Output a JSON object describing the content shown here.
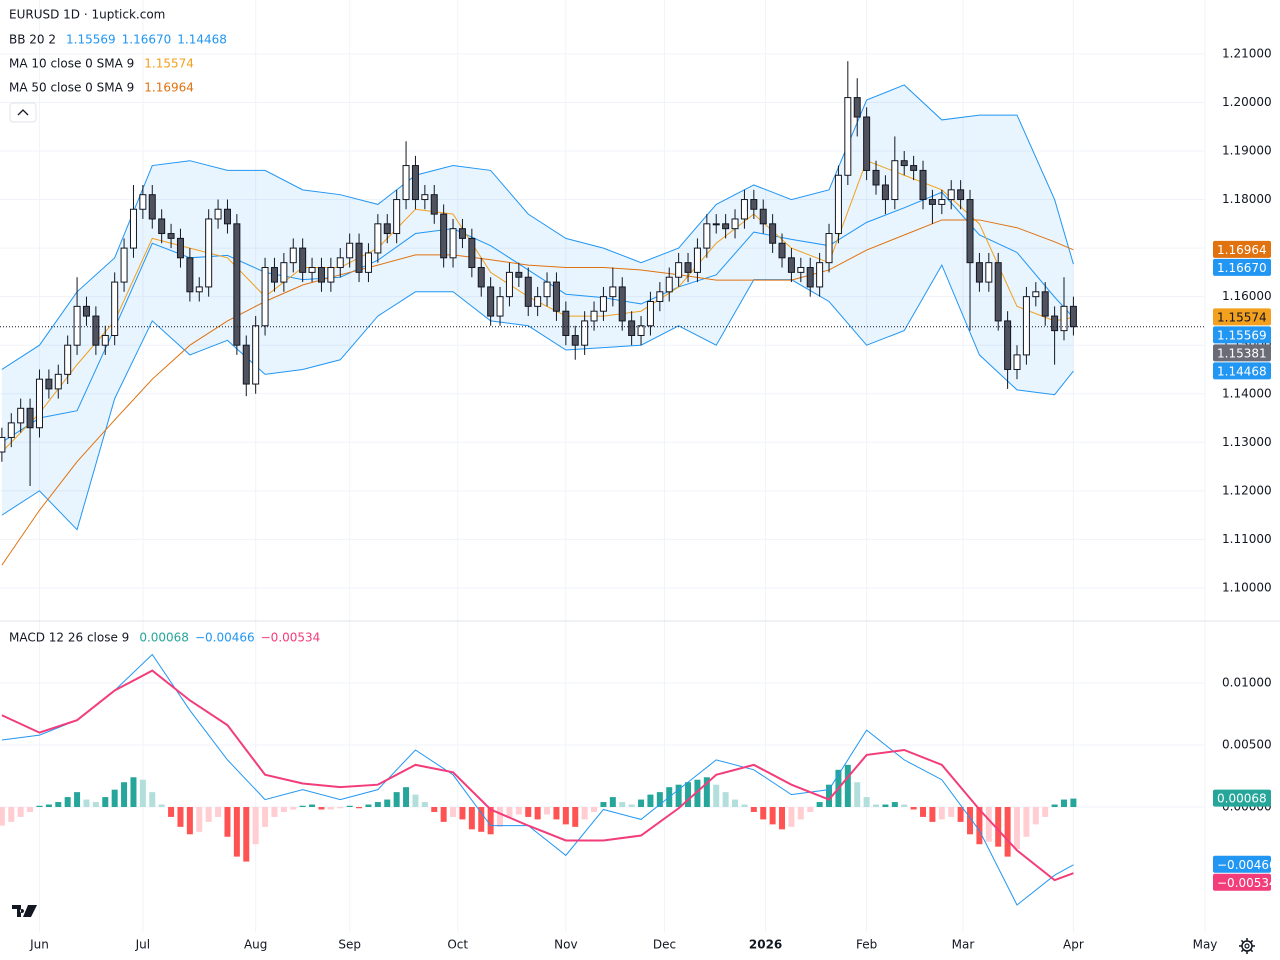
{
  "chart_data": [
    {
      "type": "candlestick",
      "title": "EURUSD 1D · 1uptick.com",
      "x": [
        0,
        2,
        4,
        6,
        8,
        10,
        12,
        14,
        16,
        18,
        20,
        22,
        24,
        26,
        28,
        30,
        32,
        34,
        36,
        38,
        40,
        42,
        44,
        46,
        48,
        50,
        52,
        54,
        56,
        58,
        60,
        62,
        64,
        66,
        68,
        70,
        72,
        74,
        76,
        78,
        80,
        82,
        84,
        86,
        88,
        90,
        92,
        94,
        96,
        98,
        100,
        102,
        104,
        106,
        108,
        110,
        112,
        114,
        116,
        118,
        120,
        122,
        124,
        126,
        128,
        130,
        132,
        134,
        136,
        138,
        140,
        142,
        144,
        146,
        148,
        150,
        152,
        154,
        156,
        158,
        160,
        162,
        164,
        166,
        168,
        170,
        172,
        174,
        176,
        178,
        180,
        182,
        184,
        186,
        188,
        190,
        192,
        194,
        196,
        198,
        200,
        202,
        204,
        206,
        208,
        210,
        212,
        214,
        216,
        218,
        220,
        222,
        224,
        226,
        228
      ],
      "open": [
        1.128,
        1.131,
        1.134,
        1.137,
        1.133,
        1.143,
        1.141,
        1.144,
        1.15,
        1.158,
        1.156,
        1.15,
        1.152,
        1.163,
        1.17,
        1.178,
        1.181,
        1.176,
        1.173,
        1.172,
        1.168,
        1.161,
        1.162,
        1.176,
        1.178,
        1.175,
        1.15,
        1.142,
        1.154,
        1.166,
        1.163,
        1.167,
        1.17,
        1.165,
        1.166,
        1.163,
        1.166,
        1.168,
        1.171,
        1.165,
        1.169,
        1.175,
        1.173,
        1.18,
        1.187,
        1.18,
        1.181,
        1.177,
        1.168,
        1.174,
        1.172,
        1.166,
        1.162,
        1.156,
        1.16,
        1.165,
        1.164,
        1.158,
        1.16,
        1.163,
        1.157,
        1.152,
        1.15,
        1.155,
        1.157,
        1.16,
        1.162,
        1.155,
        1.152,
        1.154,
        1.159,
        1.161,
        1.164,
        1.167,
        1.165,
        1.17,
        1.175,
        1.175,
        1.174,
        1.176,
        1.18,
        1.178,
        1.175,
        1.171,
        1.168,
        1.165,
        1.166,
        1.162,
        1.167,
        1.173,
        1.185,
        1.201,
        1.197,
        1.186,
        1.183,
        1.18,
        1.188,
        1.187,
        1.186,
        1.18,
        1.179,
        1.18,
        1.182,
        1.18,
        1.167,
        1.163,
        1.167,
        1.155,
        1.145,
        1.148,
        1.16,
        1.161,
        1.156,
        1.153,
        1.158
      ],
      "high": [
        1.133,
        1.136,
        1.139,
        1.139,
        1.145,
        1.145,
        1.146,
        1.152,
        1.164,
        1.16,
        1.158,
        1.154,
        1.165,
        1.172,
        1.183,
        1.183,
        1.183,
        1.178,
        1.175,
        1.174,
        1.17,
        1.164,
        1.178,
        1.18,
        1.18,
        1.177,
        1.152,
        1.156,
        1.168,
        1.168,
        1.169,
        1.172,
        1.172,
        1.168,
        1.168,
        1.168,
        1.17,
        1.173,
        1.173,
        1.171,
        1.177,
        1.177,
        1.182,
        1.192,
        1.189,
        1.183,
        1.183,
        1.179,
        1.176,
        1.176,
        1.174,
        1.168,
        1.164,
        1.162,
        1.167,
        1.167,
        1.166,
        1.162,
        1.165,
        1.165,
        1.159,
        1.154,
        1.157,
        1.159,
        1.162,
        1.166,
        1.164,
        1.157,
        1.156,
        1.161,
        1.163,
        1.166,
        1.169,
        1.169,
        1.172,
        1.177,
        1.177,
        1.177,
        1.178,
        1.182,
        1.182,
        1.18,
        1.177,
        1.173,
        1.17,
        1.168,
        1.168,
        1.169,
        1.175,
        1.187,
        1.2085,
        1.205,
        1.199,
        1.188,
        1.185,
        1.193,
        1.19,
        1.189,
        1.188,
        1.182,
        1.182,
        1.184,
        1.184,
        1.182,
        1.169,
        1.169,
        1.169,
        1.157,
        1.15,
        1.162,
        1.163,
        1.163,
        1.158,
        1.164,
        1.16
      ],
      "low": [
        1.126,
        1.129,
        1.132,
        1.121,
        1.131,
        1.139,
        1.139,
        1.142,
        1.148,
        1.154,
        1.148,
        1.148,
        1.15,
        1.161,
        1.168,
        1.176,
        1.174,
        1.171,
        1.17,
        1.166,
        1.159,
        1.159,
        1.16,
        1.174,
        1.173,
        1.148,
        1.1395,
        1.14,
        1.152,
        1.161,
        1.161,
        1.165,
        1.163,
        1.163,
        1.161,
        1.161,
        1.164,
        1.166,
        1.163,
        1.163,
        1.167,
        1.171,
        1.171,
        1.178,
        1.178,
        1.178,
        1.175,
        1.166,
        1.166,
        1.17,
        1.164,
        1.16,
        1.154,
        1.154,
        1.158,
        1.162,
        1.156,
        1.156,
        1.158,
        1.155,
        1.15,
        1.147,
        1.148,
        1.153,
        1.155,
        1.158,
        1.153,
        1.15,
        1.15,
        1.152,
        1.157,
        1.159,
        1.162,
        1.163,
        1.163,
        1.168,
        1.173,
        1.172,
        1.172,
        1.174,
        1.176,
        1.173,
        1.169,
        1.166,
        1.163,
        1.163,
        1.16,
        1.16,
        1.165,
        1.171,
        1.183,
        1.193,
        1.184,
        1.181,
        1.177,
        1.178,
        1.185,
        1.184,
        1.178,
        1.175,
        1.177,
        1.178,
        1.178,
        1.153,
        1.161,
        1.161,
        1.153,
        1.141,
        1.143,
        1.146,
        1.158,
        1.154,
        1.146,
        1.151,
        1.152
      ],
      "close": [
        1.131,
        1.134,
        1.137,
        1.133,
        1.143,
        1.141,
        1.144,
        1.15,
        1.158,
        1.156,
        1.15,
        1.152,
        1.163,
        1.17,
        1.178,
        1.181,
        1.176,
        1.173,
        1.172,
        1.168,
        1.161,
        1.162,
        1.176,
        1.178,
        1.175,
        1.15,
        1.142,
        1.154,
        1.166,
        1.163,
        1.167,
        1.17,
        1.165,
        1.166,
        1.163,
        1.166,
        1.168,
        1.171,
        1.165,
        1.169,
        1.175,
        1.173,
        1.18,
        1.187,
        1.18,
        1.181,
        1.177,
        1.168,
        1.174,
        1.172,
        1.166,
        1.162,
        1.156,
        1.16,
        1.165,
        1.164,
        1.158,
        1.16,
        1.163,
        1.157,
        1.152,
        1.15,
        1.155,
        1.157,
        1.16,
        1.162,
        1.155,
        1.152,
        1.154,
        1.159,
        1.161,
        1.164,
        1.167,
        1.165,
        1.17,
        1.175,
        1.175,
        1.174,
        1.176,
        1.18,
        1.178,
        1.175,
        1.171,
        1.168,
        1.165,
        1.166,
        1.162,
        1.167,
        1.173,
        1.185,
        1.201,
        1.197,
        1.186,
        1.183,
        1.18,
        1.188,
        1.187,
        1.186,
        1.18,
        1.179,
        1.18,
        1.182,
        1.18,
        1.167,
        1.163,
        1.167,
        1.155,
        1.145,
        1.148,
        1.16,
        1.161,
        1.156,
        1.153,
        1.158,
        1.15381
      ],
      "up_color": "#ffffff",
      "down_color": "#50535e",
      "wick_color": "#131722",
      "price_line": true,
      "price_badge_color": "#6a6d78",
      "line_x": [
        0,
        8,
        16,
        24,
        32,
        40,
        48,
        56,
        64,
        72,
        80,
        88,
        96,
        104,
        112,
        120,
        128,
        136,
        144,
        152,
        160,
        168,
        176,
        184,
        192,
        200,
        208,
        216,
        224,
        228
      ],
      "bollinger": {
        "color": "#2196f3",
        "fill": "rgba(33,150,243,0.10)",
        "upper": [
          1.145,
          1.15,
          1.161,
          1.168,
          1.187,
          1.188,
          1.186,
          1.186,
          1.182,
          1.181,
          1.179,
          1.185,
          1.187,
          1.186,
          1.177,
          1.172,
          1.17,
          1.167,
          1.17,
          1.179,
          1.183,
          1.18,
          1.182,
          1.2005,
          1.2036,
          1.1964,
          1.1974,
          1.1974,
          1.18,
          1.1667
        ],
        "basis": [
          1.13,
          1.135,
          1.1365,
          1.1535,
          1.171,
          1.168,
          1.1685,
          1.165,
          1.1635,
          1.164,
          1.1675,
          1.173,
          1.174,
          1.1705,
          1.1655,
          1.1605,
          1.1598,
          1.1585,
          1.162,
          1.1645,
          1.1733,
          1.1718,
          1.1705,
          1.1753,
          1.1783,
          1.1815,
          1.1727,
          1.1691,
          1.1599,
          1.15569
        ],
        "lower": [
          1.115,
          1.12,
          1.112,
          1.139,
          1.155,
          1.148,
          1.151,
          1.144,
          1.145,
          1.147,
          1.156,
          1.161,
          1.161,
          1.155,
          1.154,
          1.149,
          1.1495,
          1.15,
          1.154,
          1.15,
          1.1635,
          1.1635,
          1.159,
          1.15,
          1.153,
          1.1665,
          1.148,
          1.1408,
          1.1398,
          1.14468
        ]
      },
      "moving_averages": [
        {
          "color": "#f2a01e",
          "values": [
            1.128,
            1.136,
            1.146,
            1.155,
            1.172,
            1.17,
            1.168,
            1.16,
            1.166,
            1.166,
            1.17,
            1.178,
            1.177,
            1.165,
            1.16,
            1.156,
            1.156,
            1.157,
            1.162,
            1.171,
            1.177,
            1.17,
            1.167,
            1.188,
            1.185,
            1.182,
            1.175,
            1.158,
            1.155,
            1.15574
          ]
        },
        {
          "color": "#e0720f",
          "values": [
            1.1047,
            1.116,
            1.126,
            1.1346,
            1.143,
            1.15,
            1.155,
            1.159,
            1.1624,
            1.1645,
            1.1665,
            1.1686,
            1.1686,
            1.1676,
            1.1665,
            1.166,
            1.166,
            1.1655,
            1.1645,
            1.1634,
            1.1634,
            1.1634,
            1.1655,
            1.1696,
            1.1727,
            1.1758,
            1.1758,
            1.1742,
            1.1713,
            1.16964
          ]
        }
      ],
      "legend": [
        {
          "label": "BB 20 2",
          "values": [
            "1.15569",
            "1.16670",
            "1.14468"
          ]
        },
        {
          "label": "MA 10 close 0 SMA 9",
          "values": [
            "1.15574"
          ]
        },
        {
          "label": "MA 50 close 0 SMA 9",
          "values": [
            "1.16964"
          ]
        }
      ],
      "xlim": [
        -0.4,
        256
      ],
      "xticks": [
        {
          "value": 8,
          "label": "Jun"
        },
        {
          "value": 30,
          "label": "Jul"
        },
        {
          "value": 54,
          "label": "Aug"
        },
        {
          "value": 74,
          "label": "Sep"
        },
        {
          "value": 97,
          "label": "Oct"
        },
        {
          "value": 120,
          "label": "Nov"
        },
        {
          "value": 141,
          "label": "Dec"
        },
        {
          "value": 162.5,
          "label": "2026"
        },
        {
          "value": 184,
          "label": "Feb"
        },
        {
          "value": 204.5,
          "label": "Mar"
        },
        {
          "value": 228,
          "label": "Apr"
        },
        {
          "value": 256,
          "label": "May"
        }
      ],
      "ylim": [
        1.0934,
        1.2211
      ],
      "yticks": [
        {
          "value": 1.1,
          "label": "1.10000"
        },
        {
          "value": 1.11,
          "label": "1.11000"
        },
        {
          "value": 1.12,
          "label": "1.12000"
        },
        {
          "value": 1.13,
          "label": "1.13000"
        },
        {
          "value": 1.14,
          "label": "1.14000"
        },
        {
          "value": 1.15,
          "label": "1.15000"
        },
        {
          "value": 1.16,
          "label": "1.16000"
        },
        {
          "value": 1.17,
          "label": "1.17000"
        },
        {
          "value": 1.18,
          "label": "1.18000"
        },
        {
          "value": 1.19,
          "label": "1.19000"
        },
        {
          "value": 1.2,
          "label": "1.20000"
        },
        {
          "value": 1.21,
          "label": "1.21000"
        }
      ],
      "grid": true
    },
    {
      "type": "macd",
      "legend": {
        "label": "MACD 12 26 close 9",
        "values": [
          "0.00068",
          "−0.00466",
          "−0.00534"
        ]
      },
      "histogram": [
        -0.0015,
        -0.0012,
        -0.0008,
        -0.0004,
        0.0001,
        0.0002,
        0.0004,
        0.0008,
        0.0012,
        0.0006,
        0.0004,
        0.0008,
        0.0014,
        0.002,
        0.0024,
        0.0022,
        0.0012,
        0.0002,
        -0.0008,
        -0.0016,
        -0.0022,
        -0.002,
        -0.0012,
        -0.0008,
        -0.0024,
        -0.004,
        -0.0044,
        -0.003,
        -0.0016,
        -0.0008,
        -0.0004,
        -0.0002,
        0.0001,
        0.0002,
        -0.0002,
        -0.0002,
        -0.0001,
        0.0001,
        -0.0001,
        0.0002,
        0.0004,
        0.0006,
        0.0012,
        0.0016,
        0.001,
        0.0004,
        -0.0004,
        -0.0012,
        -0.0008,
        -0.001,
        -0.0018,
        -0.002,
        -0.0022,
        -0.0016,
        -0.0008,
        -0.0006,
        -0.0008,
        -0.001,
        -0.0006,
        -0.001,
        -0.0014,
        -0.0016,
        -0.001,
        -0.0004,
        0.0004,
        0.0008,
        0.0004,
        0.0002,
        0.0006,
        0.001,
        0.0012,
        0.0016,
        0.0018,
        0.002,
        0.0022,
        0.0024,
        0.0018,
        0.0012,
        0.0006,
        0.0002,
        -0.0004,
        -0.001,
        -0.0014,
        -0.0018,
        -0.0016,
        -0.001,
        -0.0004,
        0.0004,
        0.0018,
        0.003,
        0.0034,
        0.002,
        0.0008,
        0.0002,
        0.0002,
        0.0004,
        0.0002,
        -0.0002,
        -0.0008,
        -0.0012,
        -0.001,
        -0.0008,
        -0.0012,
        -0.0022,
        -0.003,
        -0.0028,
        -0.0032,
        -0.004,
        -0.0034,
        -0.0024,
        -0.0014,
        -0.0008,
        0.0002,
        0.0006,
        0.00068
      ],
      "histogram_colors": [
        "#26a69a",
        "#b2dfdb",
        "#ffcdd2",
        "#ff5252"
      ],
      "macd": {
        "color": "#2196f3",
        "values": [
          0.0054,
          0.0058,
          0.007,
          0.0094,
          0.0123,
          0.0078,
          0.0038,
          0.0006,
          0.0014,
          0.0006,
          0.0014,
          0.0046,
          0.0026,
          -0.0015,
          -0.0015,
          -0.0039,
          -0.0002,
          -0.001,
          0.0014,
          0.0038,
          0.003,
          0.001,
          0.0014,
          0.0062,
          0.0038,
          0.0022,
          -0.0019,
          -0.0079,
          -0.0055,
          -0.00466
        ]
      },
      "signal": {
        "color": "#f23d7a",
        "values": [
          0.0074,
          0.006,
          0.007,
          0.0094,
          0.011,
          0.0086,
          0.0066,
          0.0026,
          0.0019,
          0.0016,
          0.0018,
          0.0034,
          0.0028,
          -0.0002,
          -0.0015,
          -0.0027,
          -0.0027,
          -0.0023,
          -0.0001,
          0.0026,
          0.0034,
          0.0018,
          0.0006,
          0.0042,
          0.0046,
          0.0034,
          -0.0002,
          -0.0035,
          -0.0059,
          -0.00534
        ]
      },
      "ylim": [
        -0.01008,
        0.01492
      ],
      "yticks": [
        {
          "value": 0,
          "label": "0.00000"
        },
        {
          "value": 0.005,
          "label": "0.00500"
        },
        {
          "value": 0.01,
          "label": "0.01000"
        }
      ],
      "grid": true
    }
  ]
}
